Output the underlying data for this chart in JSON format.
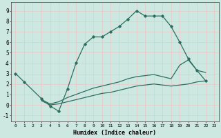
{
  "title": "",
  "xlabel": "Humidex (Indice chaleur)",
  "bg_color": "#cce8e0",
  "grid_color": "#e8c8c8",
  "line_color": "#2d6e62",
  "xlim": [
    -0.5,
    23.5
  ],
  "ylim": [
    -1.6,
    9.8
  ],
  "xticks": [
    0,
    1,
    2,
    3,
    4,
    5,
    6,
    7,
    8,
    9,
    10,
    11,
    12,
    13,
    14,
    15,
    16,
    17,
    18,
    19,
    20,
    21,
    22,
    23
  ],
  "yticks": [
    -1,
    0,
    1,
    2,
    3,
    4,
    5,
    6,
    7,
    8,
    9
  ],
  "curve1_x": [
    0,
    1,
    3,
    4,
    5,
    6,
    7,
    8,
    9,
    10,
    11,
    12,
    13,
    14,
    15,
    16,
    17,
    18,
    19,
    20,
    21,
    22
  ],
  "curve1_y": [
    3.0,
    2.2,
    0.6,
    -0.1,
    -0.6,
    1.5,
    4.0,
    5.8,
    6.5,
    6.5,
    7.0,
    7.5,
    8.2,
    9.0,
    8.5,
    8.5,
    8.5,
    7.5,
    6.0,
    4.4,
    3.3,
    2.3
  ],
  "curve2_x": [
    3,
    4,
    5,
    6,
    7,
    8,
    9,
    10,
    11,
    12,
    13,
    14,
    15,
    16,
    17,
    18,
    19,
    20,
    21,
    22
  ],
  "curve2_y": [
    0.5,
    0.1,
    0.3,
    0.7,
    1.0,
    1.3,
    1.6,
    1.8,
    2.0,
    2.2,
    2.5,
    2.7,
    2.8,
    2.9,
    2.7,
    2.5,
    3.8,
    4.3,
    3.3,
    3.1
  ],
  "curve3_x": [
    3,
    4,
    5,
    6,
    7,
    8,
    9,
    10,
    11,
    12,
    13,
    14,
    15,
    16,
    17,
    18,
    19,
    20,
    21,
    22
  ],
  "curve3_y": [
    0.4,
    0.0,
    0.1,
    0.3,
    0.5,
    0.7,
    0.9,
    1.1,
    1.2,
    1.4,
    1.6,
    1.8,
    1.9,
    2.0,
    1.9,
    1.8,
    1.9,
    2.0,
    2.2,
    2.3
  ]
}
